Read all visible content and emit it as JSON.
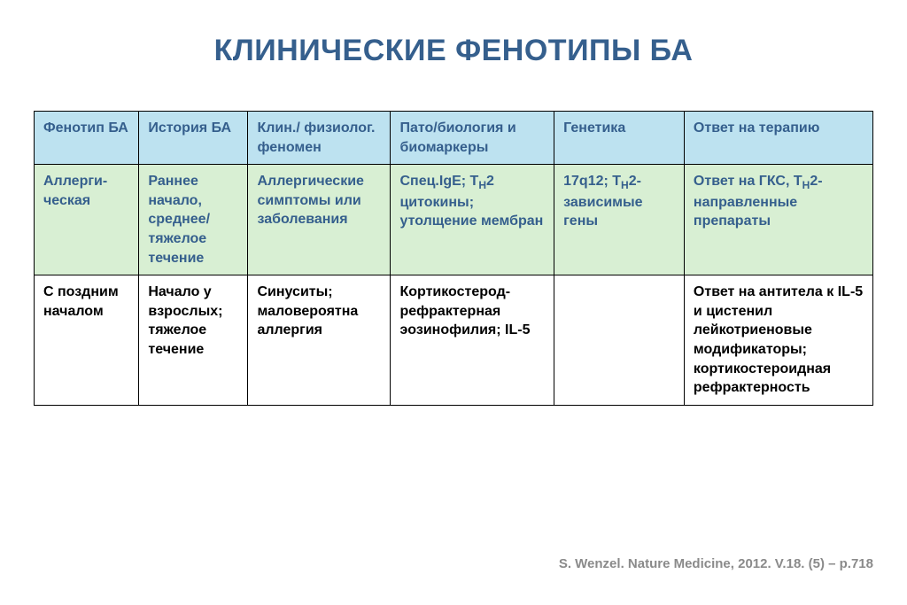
{
  "title": "КЛИНИЧЕСКИЕ ФЕНОТИПЫ БА",
  "table": {
    "columns": [
      "Фенотип БА",
      "История БА",
      "Клин./ физиолог. феномен",
      "Пато/биология и биомаркеры",
      "Генетика",
      "Ответ на терапию"
    ],
    "column_widths_pct": [
      12.5,
      13,
      17,
      19.5,
      15.5,
      22.5
    ],
    "header_bg": "#bde2f0",
    "header_color": "#355f8d",
    "row_green_bg": "#d8efd3",
    "row_green_color": "#355f8d",
    "row_white_bg": "#ffffff",
    "row_white_color": "#000000",
    "border_color": "#000000",
    "font_size": 16,
    "rows": [
      {
        "style": "green",
        "cells": [
          "Аллерги-ческая",
          "Раннее начало, среднее/тяжелое течение",
          "Аллергические симптомы или заболевания",
          "Спец.IgE; T_H2 цитокины; утолщение мембран",
          "17q12; T_H2-зависимые гены",
          "Ответ на ГКС, T_H2-направленные препараты"
        ]
      },
      {
        "style": "white",
        "cells": [
          "С поздним началом",
          "Начало у взрослых; тяжелое течение",
          "Синуситы; маловероятна аллергия",
          "Кортикостерод-рефрактерная эозинофилия; IL-5",
          "",
          "Ответ на антитела к IL-5 и цистенил лейкотриеновые модификаторы; кортикостероидная рефрактерность"
        ]
      }
    ]
  },
  "citation": "S. Wenzel. Nature Medicine, 2012. V.18. (5) – p.718",
  "title_color": "#355f8d",
  "title_fontsize": 34,
  "citation_color": "#8a8a8a",
  "citation_fontsize": 15,
  "background_color": "#ffffff"
}
